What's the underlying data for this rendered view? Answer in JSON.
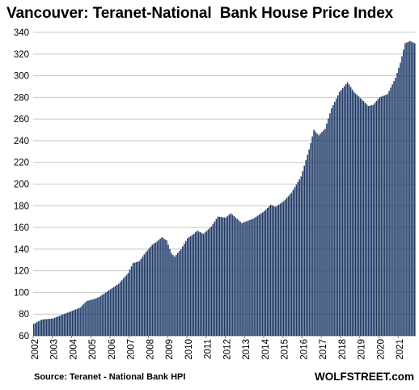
{
  "chart_data": {
    "type": "bar",
    "title": "Vancouver: Teranet-National  Bank House Price Index",
    "xlabel": "",
    "ylabel": "",
    "ylim": [
      60,
      340
    ],
    "yticks": [
      60,
      80,
      100,
      120,
      140,
      160,
      180,
      200,
      220,
      240,
      260,
      280,
      300,
      320,
      340
    ],
    "x_tick_labels": [
      "2002",
      "2003",
      "2004",
      "2005",
      "2006",
      "2007",
      "2008",
      "2009",
      "2010",
      "2011",
      "2012",
      "2013",
      "2014",
      "2015",
      "2016",
      "2017",
      "2018",
      "2019",
      "2020",
      "2021"
    ],
    "grid": true,
    "legend": "none",
    "bar_color": "#1f3a68",
    "frequency": "monthly",
    "start": "2002-01",
    "end": "2021-11",
    "anchors": [
      [
        "2002-01",
        71
      ],
      [
        "2002-06",
        75
      ],
      [
        "2003-01",
        76
      ],
      [
        "2003-06",
        79
      ],
      [
        "2004-01",
        83
      ],
      [
        "2004-06",
        86
      ],
      [
        "2004-10",
        92
      ],
      [
        "2005-03",
        94
      ],
      [
        "2005-06",
        96
      ],
      [
        "2006-01",
        103
      ],
      [
        "2006-06",
        108
      ],
      [
        "2006-12",
        118
      ],
      [
        "2007-03",
        127
      ],
      [
        "2007-07",
        129
      ],
      [
        "2007-11",
        137
      ],
      [
        "2008-03",
        144
      ],
      [
        "2008-06",
        147
      ],
      [
        "2008-09",
        151
      ],
      [
        "2008-12",
        148
      ],
      [
        "2009-03",
        136
      ],
      [
        "2009-05",
        133
      ],
      [
        "2009-09",
        140
      ],
      [
        "2010-01",
        150
      ],
      [
        "2010-05",
        154
      ],
      [
        "2010-07",
        157
      ],
      [
        "2010-11",
        154
      ],
      [
        "2011-04",
        161
      ],
      [
        "2011-08",
        170
      ],
      [
        "2012-01",
        169
      ],
      [
        "2012-04",
        173
      ],
      [
        "2012-08",
        168
      ],
      [
        "2012-11",
        164
      ],
      [
        "2013-06",
        168
      ],
      [
        "2014-01",
        175
      ],
      [
        "2014-05",
        181
      ],
      [
        "2014-08",
        179
      ],
      [
        "2015-01",
        184
      ],
      [
        "2015-06",
        192
      ],
      [
        "2015-12",
        207
      ],
      [
        "2016-05",
        232
      ],
      [
        "2016-08",
        250
      ],
      [
        "2016-11",
        245
      ],
      [
        "2017-03",
        251
      ],
      [
        "2017-07",
        270
      ],
      [
        "2017-12",
        285
      ],
      [
        "2018-05",
        294
      ],
      [
        "2018-09",
        285
      ],
      [
        "2019-02",
        278
      ],
      [
        "2019-06",
        272
      ],
      [
        "2019-09",
        273
      ],
      [
        "2020-01",
        280
      ],
      [
        "2020-06",
        283
      ],
      [
        "2020-11",
        298
      ],
      [
        "2021-02",
        312
      ],
      [
        "2021-05",
        330
      ],
      [
        "2021-08",
        332
      ],
      [
        "2021-11",
        330
      ]
    ]
  },
  "footer": {
    "source": "Source: Teranet - National Bank HPI",
    "brand": "WOLFSTREET.com"
  }
}
